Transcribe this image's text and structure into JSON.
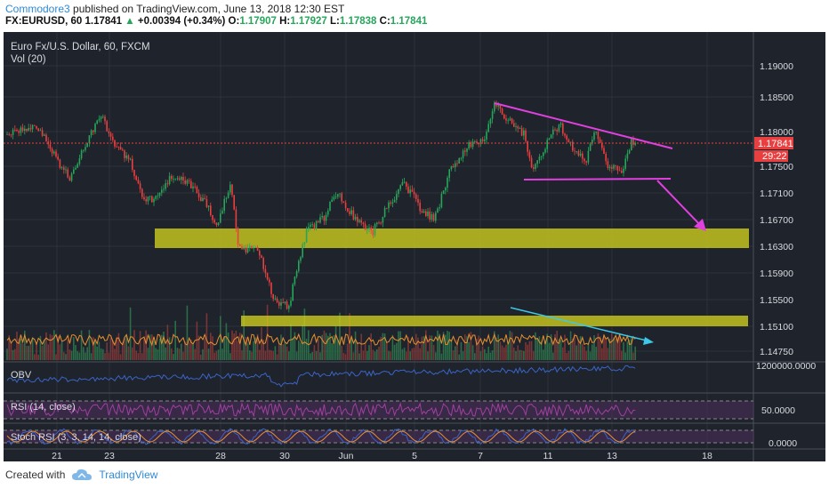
{
  "header": {
    "author": "Commodore3",
    "published_text": "published on TradingView.com, June 13, 2018 12:30 EST",
    "symbol": "FX:EURUSD, 60",
    "last": "1.17841",
    "change": "+0.00394 (+0.34%)",
    "o_label": "O:",
    "o_value": "1.17907",
    "h_label": "H:",
    "h_value": "1.17927",
    "l_label": "L:",
    "l_value": "1.17838",
    "c_label": "C:",
    "c_value": "1.17841"
  },
  "chart": {
    "title": "Euro Fx/U.S. Dollar, 60, FXCM",
    "vol_label": "Vol (20)",
    "obv_label": "OBV",
    "rsi_label": "RSI (14, close)",
    "stoch_label": "Stoch RSI (3, 3, 14, 14, close)",
    "price_tag": "1.17841",
    "countdown_tag": "29:22",
    "price_ticks": [
      "1.19000",
      "1.18500",
      "1.18000",
      "1.17500",
      "1.17100",
      "1.16700",
      "1.16300",
      "1.15900",
      "1.15500",
      "1.15100",
      "1.14750"
    ],
    "obv_tick": "1200000.0000",
    "rsi_tick": "50.0000",
    "stoch_tick": "0.0000",
    "x_ticks": [
      "21",
      "23",
      "28",
      "30",
      "Jun",
      "5",
      "7",
      "11",
      "13",
      "18"
    ],
    "colors": {
      "background": "#1f232b",
      "zone": "#c8c81e",
      "triangle": "#e040e0",
      "arrow_down": "#e040e0",
      "vol_trend": "#3ec8e8",
      "price_line": "#e84040",
      "obv_line": "#3a64c8",
      "rsi_line": "#a040a0",
      "stoch_k": "#3a64c8",
      "stoch_d": "#e89030"
    }
  },
  "footer": {
    "created_with": "Created with",
    "brand": "TradingView",
    "logo_icon": "cloud-logo-icon"
  }
}
